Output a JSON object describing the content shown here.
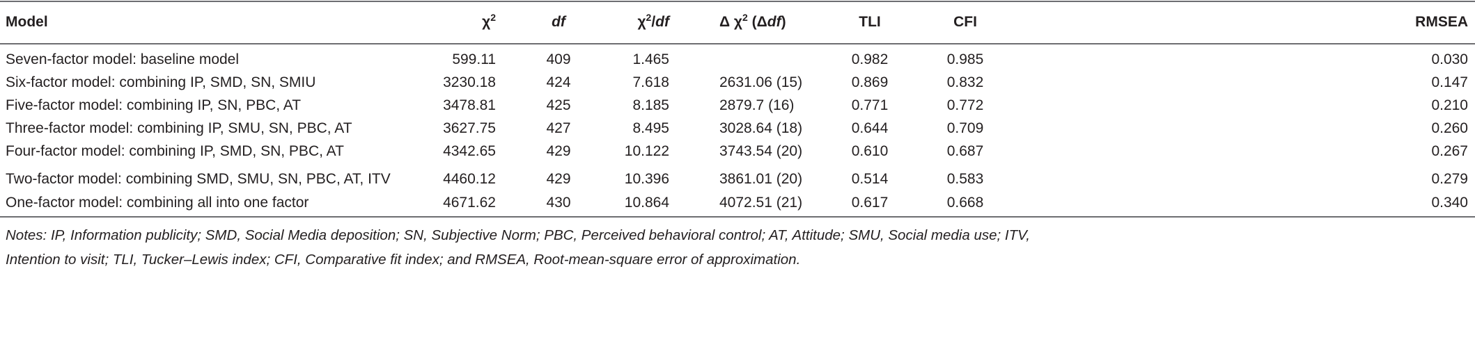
{
  "table": {
    "header": [
      [
        {
          "text": "Model"
        }
      ],
      [
        {
          "text": "χ"
        },
        {
          "text": "2",
          "style": "sup"
        }
      ],
      [
        {
          "text": "df",
          "style": "italic"
        }
      ],
      [
        {
          "text": "χ"
        },
        {
          "text": "2",
          "style": "sup"
        },
        {
          "text": "/"
        },
        {
          "text": "df",
          "style": "italic"
        }
      ],
      [
        {
          "text": "Δ χ"
        },
        {
          "text": "2",
          "style": "sup"
        },
        {
          "text": " (Δ"
        },
        {
          "text": "df",
          "style": "italic"
        },
        {
          "text": ")"
        }
      ],
      [
        {
          "text": "TLI"
        }
      ],
      [
        {
          "text": "CFI"
        }
      ],
      [
        {
          "text": "RMSEA"
        }
      ]
    ],
    "rows": [
      [
        "Seven-factor model: baseline model",
        "599.11",
        "409",
        "1.465",
        null,
        "0.982",
        "0.985",
        "0.030"
      ],
      [
        "Six-factor model: combining IP, SMD, SN, SMIU",
        "3230.18",
        "424",
        "7.618",
        "2631.06 (15)",
        "0.869",
        "0.832",
        "0.147"
      ],
      [
        "Five-factor model: combining IP, SN, PBC, AT",
        "3478.81",
        "425",
        "8.185",
        "2879.7 (16)",
        "0.771",
        "0.772",
        "0.210"
      ],
      [
        "Three-factor model: combining IP, SMU, SN, PBC, AT",
        "3627.75",
        "427",
        "8.495",
        "3028.64 (18)",
        "0.644",
        "0.709",
        "0.260"
      ],
      [
        "Four-factor model: combining IP, SMD, SN, PBC, AT",
        "4342.65",
        "429",
        "10.122",
        "3743.54 (20)",
        "0.610",
        "0.687",
        "0.267"
      ],
      [
        "Two-factor model: combining SMD, SMU, SN, PBC, AT, ITV",
        "4460.12",
        "429",
        "10.396",
        "3861.01 (20)",
        "0.514",
        "0.583",
        "0.279"
      ],
      [
        "One-factor model: combining all into one factor",
        "4671.62",
        "430",
        "10.864",
        "4072.51 (21)",
        "0.617",
        "0.668",
        "0.340"
      ]
    ],
    "notes": [
      "Notes: IP, Information publicity; SMD, Social Media deposition; SN, Subjective Norm; PBC, Perceived behavioral control; AT, Attitude; SMU, Social media use; ITV,",
      "Intention to visit; TLI, Tucker–Lewis index; CFI, Comparative fit index; and RMSEA, Root-mean-square error of approximation."
    ]
  }
}
